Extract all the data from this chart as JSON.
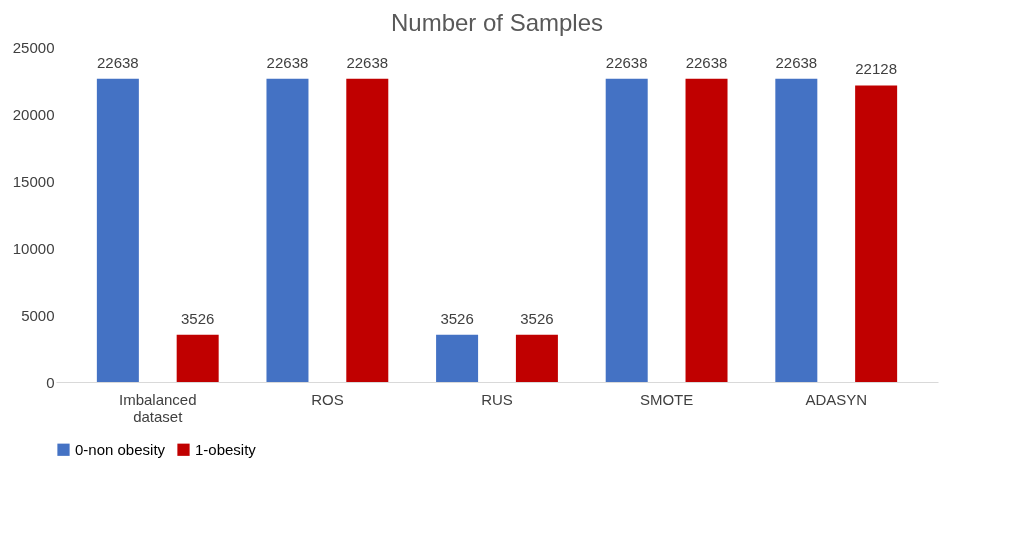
{
  "chart_data": {
    "type": "bar",
    "title": "Number of Samples",
    "categories": [
      "Imbalanced dataset",
      "ROS",
      "RUS",
      "SMOTE",
      "ADASYN"
    ],
    "series": [
      {
        "name": "0-non obesity",
        "color": "#4472c4",
        "values": [
          22638,
          22638,
          3526,
          22638,
          22638
        ]
      },
      {
        "name": "1-obesity",
        "color": "#c00000",
        "values": [
          3526,
          22638,
          3526,
          22638,
          22128
        ]
      }
    ],
    "ylim": [
      0,
      25000
    ],
    "yticks": [
      0,
      5000,
      10000,
      15000,
      20000,
      25000
    ],
    "grid": false,
    "legend": "bottom",
    "data_labels": true
  }
}
